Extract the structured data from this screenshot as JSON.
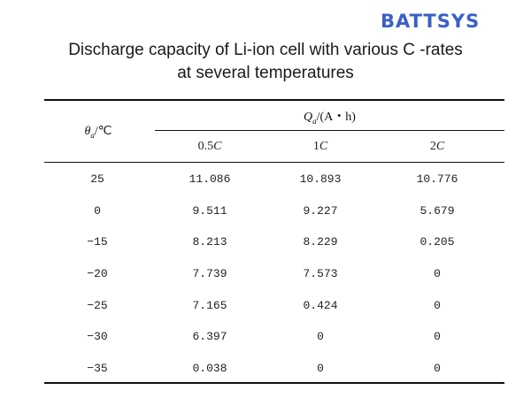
{
  "logo": "BATTSYS",
  "title": {
    "line1": "Discharge capacity of Li-ion cell with various C -rates",
    "line2": "at several temperatures"
  },
  "table": {
    "row_header": {
      "symbol": "θ",
      "subscript": "a",
      "unit": "/℃"
    },
    "group_header": {
      "symbol": "Q",
      "subscript": "a",
      "unit": "/(A・h)"
    },
    "columns": [
      {
        "value": "0.5",
        "unit": "C"
      },
      {
        "value": "1",
        "unit": "C"
      },
      {
        "value": "2",
        "unit": "C"
      }
    ],
    "rows": [
      {
        "temp": "25",
        "values": [
          "11.086",
          "10.893",
          "10.776"
        ]
      },
      {
        "temp": "0",
        "values": [
          "9.511",
          "9.227",
          "5.679"
        ]
      },
      {
        "temp": "−15",
        "values": [
          "8.213",
          "8.229",
          "0.205"
        ]
      },
      {
        "temp": "−20",
        "values": [
          "7.739",
          "7.573",
          "0"
        ]
      },
      {
        "temp": "−25",
        "values": [
          "7.165",
          "0.424",
          "0"
        ]
      },
      {
        "temp": "−30",
        "values": [
          "6.397",
          "0",
          "0"
        ]
      },
      {
        "temp": "−35",
        "values": [
          "0.038",
          "0",
          "0"
        ]
      }
    ]
  }
}
